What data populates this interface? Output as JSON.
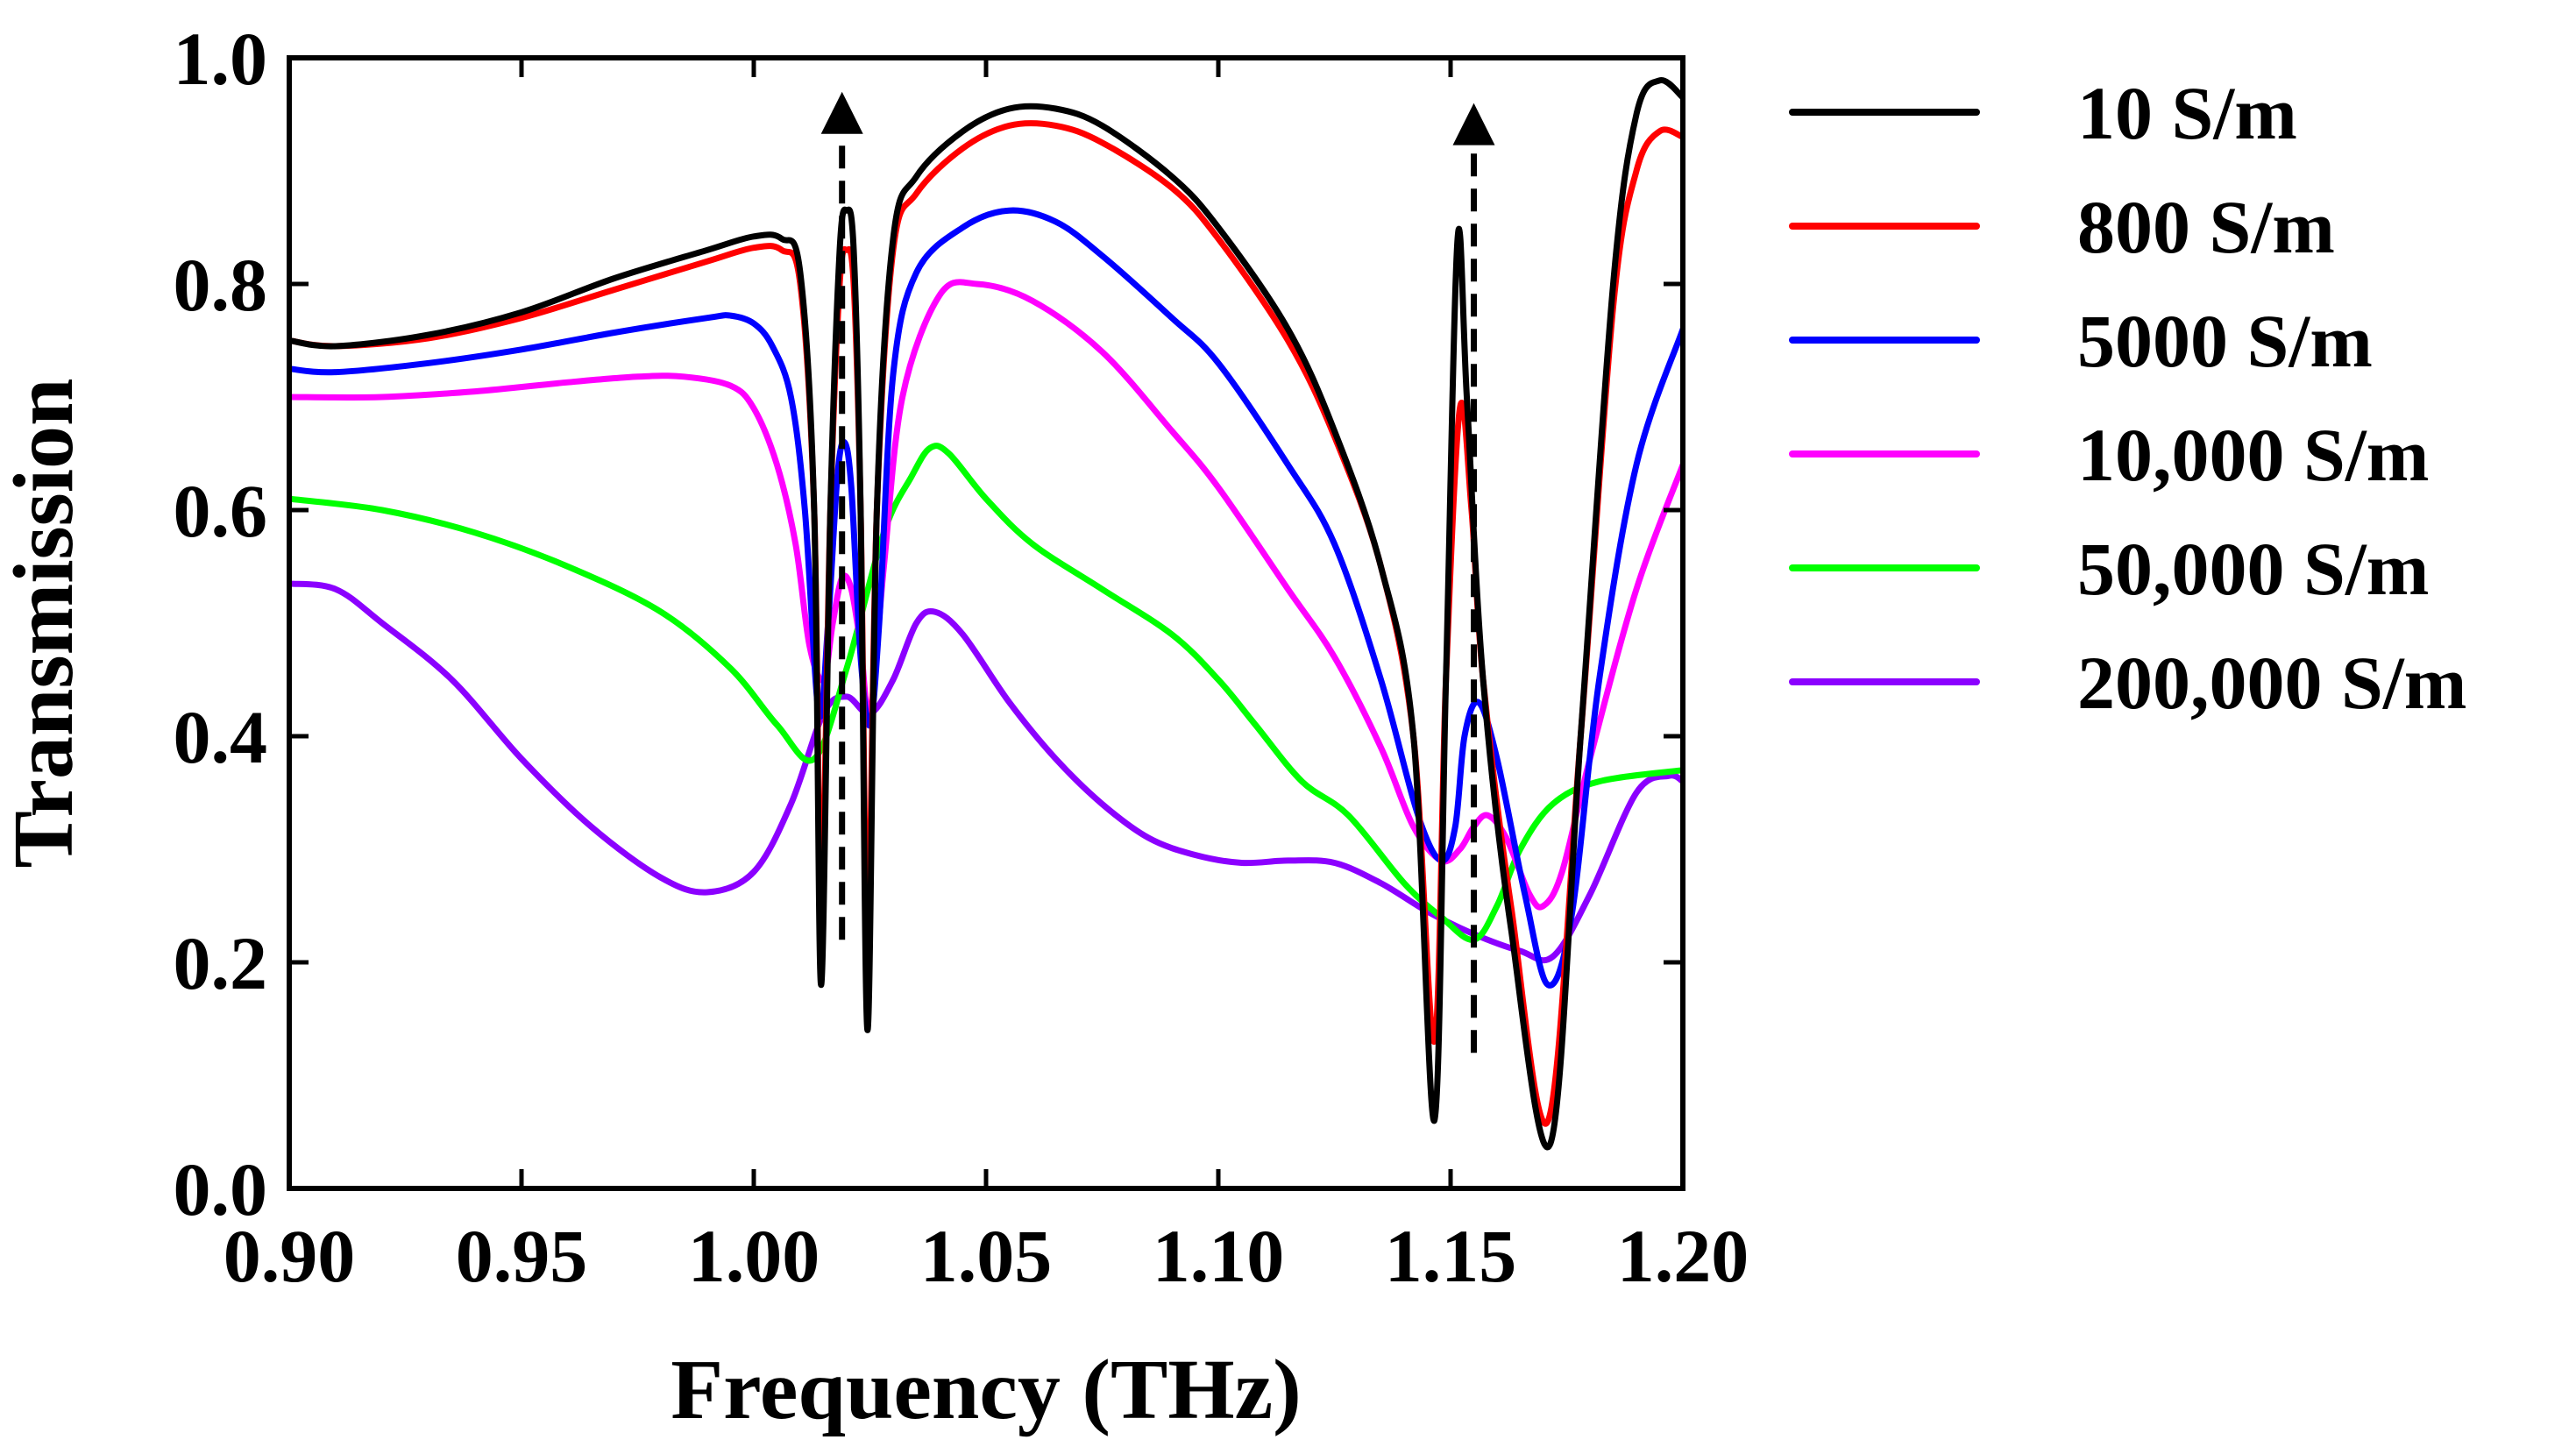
{
  "chart_data": {
    "type": "line",
    "title": "",
    "xlabel": "Frequency (THz)",
    "ylabel": "Transmission",
    "xlim": [
      0.9,
      1.2
    ],
    "ylim": [
      0.0,
      1.0
    ],
    "xticks": [
      "0.90",
      "0.95",
      "1.00",
      "1.05",
      "1.10",
      "1.15",
      "1.20"
    ],
    "yticks": [
      "0.0",
      "0.2",
      "0.4",
      "0.6",
      "0.8",
      "1.0"
    ],
    "legend_position": "right",
    "annotations": [
      {
        "type": "dashed-arrow-up",
        "x": 1.019,
        "y_start": 0.22,
        "y_end": 0.97
      },
      {
        "type": "dashed-arrow-up",
        "x": 1.155,
        "y_start": 0.12,
        "y_end": 0.96
      }
    ],
    "series": [
      {
        "name": "10 S/m",
        "color": "#000000",
        "points": [
          [
            0.9,
            0.75
          ],
          [
            0.91,
            0.745
          ],
          [
            0.93,
            0.755
          ],
          [
            0.95,
            0.775
          ],
          [
            0.97,
            0.805
          ],
          [
            0.99,
            0.83
          ],
          [
            1.0,
            0.842
          ],
          [
            1.006,
            0.84
          ],
          [
            1.01,
            0.81
          ],
          [
            1.013,
            0.6
          ],
          [
            1.0145,
            0.18
          ],
          [
            1.0165,
            0.6
          ],
          [
            1.0185,
            0.83
          ],
          [
            1.02,
            0.865
          ],
          [
            1.0215,
            0.83
          ],
          [
            1.023,
            0.6
          ],
          [
            1.0245,
            0.14
          ],
          [
            1.0265,
            0.6
          ],
          [
            1.03,
            0.84
          ],
          [
            1.035,
            0.895
          ],
          [
            1.045,
            0.935
          ],
          [
            1.055,
            0.955
          ],
          [
            1.065,
            0.955
          ],
          [
            1.075,
            0.94
          ],
          [
            1.09,
            0.895
          ],
          [
            1.1,
            0.85
          ],
          [
            1.115,
            0.76
          ],
          [
            1.125,
            0.67
          ],
          [
            1.135,
            0.55
          ],
          [
            1.142,
            0.4
          ],
          [
            1.1465,
            0.06
          ],
          [
            1.149,
            0.45
          ],
          [
            1.1515,
            0.84
          ],
          [
            1.1535,
            0.7
          ],
          [
            1.157,
            0.45
          ],
          [
            1.163,
            0.23
          ],
          [
            1.1715,
            0.04
          ],
          [
            1.178,
            0.4
          ],
          [
            1.185,
            0.8
          ],
          [
            1.19,
            0.95
          ],
          [
            1.195,
            0.98
          ],
          [
            1.2,
            0.965
          ]
        ]
      },
      {
        "name": "800 S/m",
        "color": "#ff0000",
        "points": [
          [
            0.9,
            0.75
          ],
          [
            0.91,
            0.745
          ],
          [
            0.93,
            0.752
          ],
          [
            0.95,
            0.77
          ],
          [
            0.97,
            0.795
          ],
          [
            0.99,
            0.82
          ],
          [
            1.0,
            0.832
          ],
          [
            1.006,
            0.83
          ],
          [
            1.01,
            0.8
          ],
          [
            1.013,
            0.6
          ],
          [
            1.0145,
            0.25
          ],
          [
            1.0165,
            0.6
          ],
          [
            1.0185,
            0.8
          ],
          [
            1.02,
            0.83
          ],
          [
            1.0215,
            0.8
          ],
          [
            1.023,
            0.6
          ],
          [
            1.0245,
            0.22
          ],
          [
            1.0265,
            0.6
          ],
          [
            1.03,
            0.83
          ],
          [
            1.035,
            0.88
          ],
          [
            1.045,
            0.92
          ],
          [
            1.055,
            0.94
          ],
          [
            1.065,
            0.94
          ],
          [
            1.075,
            0.925
          ],
          [
            1.09,
            0.885
          ],
          [
            1.1,
            0.84
          ],
          [
            1.115,
            0.75
          ],
          [
            1.125,
            0.665
          ],
          [
            1.135,
            0.55
          ],
          [
            1.142,
            0.4
          ],
          [
            1.1465,
            0.13
          ],
          [
            1.149,
            0.45
          ],
          [
            1.152,
            0.69
          ],
          [
            1.1545,
            0.6
          ],
          [
            1.157,
            0.45
          ],
          [
            1.163,
            0.25
          ],
          [
            1.171,
            0.06
          ],
          [
            1.178,
            0.4
          ],
          [
            1.185,
            0.78
          ],
          [
            1.19,
            0.9
          ],
          [
            1.195,
            0.935
          ],
          [
            1.2,
            0.93
          ]
        ]
      },
      {
        "name": "5000 S/m",
        "color": "#0000ff",
        "points": [
          [
            0.9,
            0.725
          ],
          [
            0.91,
            0.722
          ],
          [
            0.93,
            0.73
          ],
          [
            0.95,
            0.742
          ],
          [
            0.97,
            0.757
          ],
          [
            0.99,
            0.77
          ],
          [
            0.995,
            0.772
          ],
          [
            1.0,
            0.765
          ],
          [
            1.004,
            0.745
          ],
          [
            1.008,
            0.7
          ],
          [
            1.011,
            0.6
          ],
          [
            1.014,
            0.42
          ],
          [
            1.016,
            0.5
          ],
          [
            1.018,
            0.63
          ],
          [
            1.0195,
            0.66
          ],
          [
            1.021,
            0.62
          ],
          [
            1.023,
            0.47
          ],
          [
            1.025,
            0.41
          ],
          [
            1.027,
            0.5
          ],
          [
            1.03,
            0.72
          ],
          [
            1.035,
            0.81
          ],
          [
            1.045,
            0.85
          ],
          [
            1.055,
            0.865
          ],
          [
            1.065,
            0.855
          ],
          [
            1.075,
            0.825
          ],
          [
            1.09,
            0.77
          ],
          [
            1.1,
            0.73
          ],
          [
            1.115,
            0.64
          ],
          [
            1.125,
            0.57
          ],
          [
            1.135,
            0.45
          ],
          [
            1.143,
            0.33
          ],
          [
            1.148,
            0.29
          ],
          [
            1.151,
            0.32
          ],
          [
            1.153,
            0.4
          ],
          [
            1.156,
            0.43
          ],
          [
            1.16,
            0.38
          ],
          [
            1.166,
            0.26
          ],
          [
            1.171,
            0.18
          ],
          [
            1.176,
            0.24
          ],
          [
            1.182,
            0.45
          ],
          [
            1.19,
            0.64
          ],
          [
            1.2,
            0.76
          ]
        ]
      },
      {
        "name": "10,000 S/m",
        "color": "#ff00ff",
        "points": [
          [
            0.9,
            0.7
          ],
          [
            0.92,
            0.7
          ],
          [
            0.94,
            0.705
          ],
          [
            0.96,
            0.713
          ],
          [
            0.975,
            0.718
          ],
          [
            0.985,
            0.718
          ],
          [
            0.995,
            0.71
          ],
          [
            1.0,
            0.69
          ],
          [
            1.005,
            0.64
          ],
          [
            1.009,
            0.57
          ],
          [
            1.012,
            0.48
          ],
          [
            1.015,
            0.45
          ],
          [
            1.017,
            0.5
          ],
          [
            1.019,
            0.54
          ],
          [
            1.021,
            0.53
          ],
          [
            1.023,
            0.48
          ],
          [
            1.025,
            0.42
          ],
          [
            1.028,
            0.55
          ],
          [
            1.032,
            0.7
          ],
          [
            1.04,
            0.79
          ],
          [
            1.048,
            0.8
          ],
          [
            1.06,
            0.785
          ],
          [
            1.075,
            0.74
          ],
          [
            1.09,
            0.67
          ],
          [
            1.1,
            0.62
          ],
          [
            1.115,
            0.53
          ],
          [
            1.125,
            0.47
          ],
          [
            1.135,
            0.39
          ],
          [
            1.142,
            0.32
          ],
          [
            1.148,
            0.29
          ],
          [
            1.152,
            0.3
          ],
          [
            1.155,
            0.32
          ],
          [
            1.158,
            0.33
          ],
          [
            1.162,
            0.31
          ],
          [
            1.167,
            0.26
          ],
          [
            1.17,
            0.25
          ],
          [
            1.174,
            0.28
          ],
          [
            1.18,
            0.38
          ],
          [
            1.19,
            0.53
          ],
          [
            1.2,
            0.64
          ]
        ]
      },
      {
        "name": "50,000 S/m",
        "color": "#00ff00",
        "points": [
          [
            0.9,
            0.61
          ],
          [
            0.92,
            0.6
          ],
          [
            0.94,
            0.58
          ],
          [
            0.96,
            0.55
          ],
          [
            0.98,
            0.51
          ],
          [
            0.995,
            0.46
          ],
          [
            1.005,
            0.41
          ],
          [
            1.013,
            0.38
          ],
          [
            1.02,
            0.46
          ],
          [
            1.028,
            0.58
          ],
          [
            1.034,
            0.63
          ],
          [
            1.038,
            0.655
          ],
          [
            1.042,
            0.65
          ],
          [
            1.05,
            0.61
          ],
          [
            1.06,
            0.57
          ],
          [
            1.075,
            0.53
          ],
          [
            1.09,
            0.49
          ],
          [
            1.1,
            0.45
          ],
          [
            1.108,
            0.41
          ],
          [
            1.118,
            0.36
          ],
          [
            1.128,
            0.33
          ],
          [
            1.14,
            0.27
          ],
          [
            1.148,
            0.24
          ],
          [
            1.155,
            0.22
          ],
          [
            1.16,
            0.25
          ],
          [
            1.165,
            0.3
          ],
          [
            1.172,
            0.34
          ],
          [
            1.182,
            0.36
          ],
          [
            1.2,
            0.37
          ]
        ]
      },
      {
        "name": "200,000 S/m",
        "color": "#8b00ff",
        "points": [
          [
            0.9,
            0.535
          ],
          [
            0.91,
            0.53
          ],
          [
            0.92,
            0.5
          ],
          [
            0.935,
            0.45
          ],
          [
            0.95,
            0.38
          ],
          [
            0.965,
            0.32
          ],
          [
            0.98,
            0.275
          ],
          [
            0.99,
            0.262
          ],
          [
            1.0,
            0.28
          ],
          [
            1.008,
            0.34
          ],
          [
            1.015,
            0.42
          ],
          [
            1.02,
            0.435
          ],
          [
            1.025,
            0.42
          ],
          [
            1.03,
            0.45
          ],
          [
            1.035,
            0.5
          ],
          [
            1.039,
            0.51
          ],
          [
            1.045,
            0.49
          ],
          [
            1.055,
            0.43
          ],
          [
            1.065,
            0.38
          ],
          [
            1.075,
            0.34
          ],
          [
            1.085,
            0.31
          ],
          [
            1.095,
            0.295
          ],
          [
            1.105,
            0.288
          ],
          [
            1.115,
            0.29
          ],
          [
            1.125,
            0.288
          ],
          [
            1.135,
            0.27
          ],
          [
            1.145,
            0.245
          ],
          [
            1.155,
            0.225
          ],
          [
            1.165,
            0.21
          ],
          [
            1.172,
            0.205
          ],
          [
            1.18,
            0.26
          ],
          [
            1.19,
            0.35
          ],
          [
            1.197,
            0.365
          ],
          [
            1.2,
            0.36
          ]
        ]
      }
    ]
  }
}
